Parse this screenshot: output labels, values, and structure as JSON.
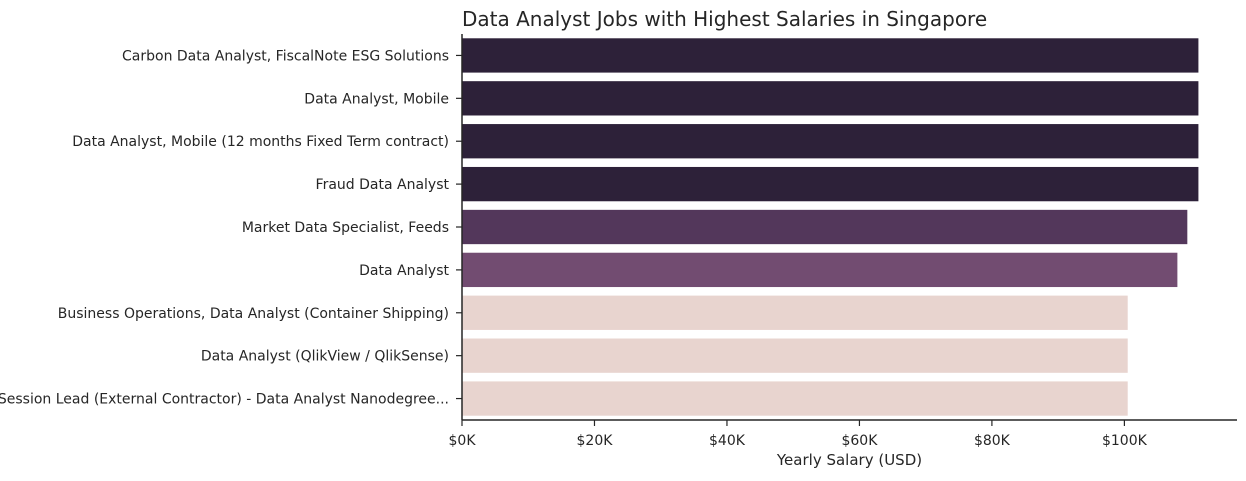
{
  "chart_data": {
    "type": "bar",
    "orientation": "horizontal",
    "title": "Data Analyst Jobs with Highest Salaries in Singapore",
    "xlabel": "Yearly Salary (USD)",
    "ylabel": "",
    "xlim": [
      0,
      117000
    ],
    "x_ticks": [
      0,
      20000,
      40000,
      60000,
      80000,
      100000
    ],
    "x_tick_labels": [
      "$0K",
      "$20K",
      "$40K",
      "$60K",
      "$80K",
      "$100K"
    ],
    "grid": false,
    "categories": [
      "Carbon Data Analyst, FiscalNote ESG Solutions",
      "Data Analyst, Mobile",
      "Data Analyst, Mobile (12 months Fixed Term contract)",
      "Fraud Data Analyst",
      "Market Data Specialist, Feeds",
      "Data Analyst",
      "Business Operations, Data Analyst (Container Shipping)",
      "Data Analyst (QlikView / QlikSense)",
      "Session Lead (External Contractor) - Data Analyst Nanodegree..."
    ],
    "values": [
      111175,
      111175,
      111175,
      111175,
      109500,
      108000,
      100500,
      100500,
      100500
    ],
    "colors": [
      "#2d2139",
      "#2d2139",
      "#2d2139",
      "#2d2139",
      "#53375b",
      "#724c71",
      "#e8d4cf",
      "#e8d4cf",
      "#e8d4cf"
    ]
  }
}
